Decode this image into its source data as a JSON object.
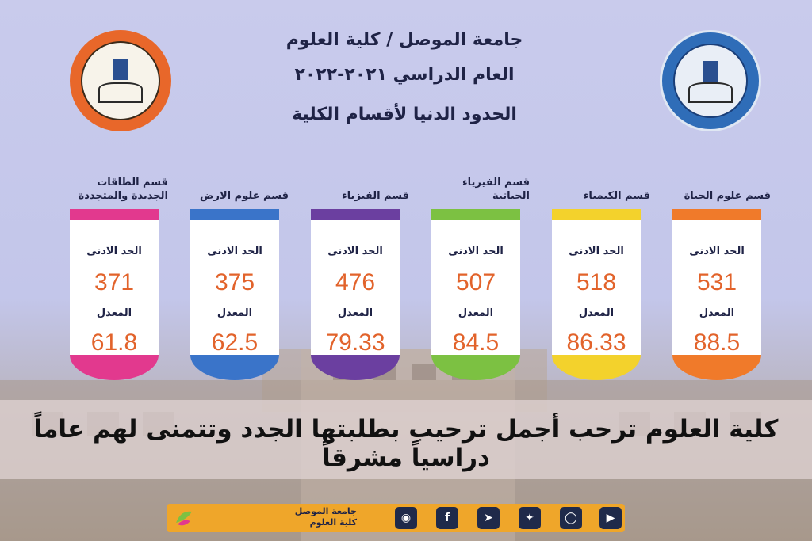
{
  "header": {
    "line1": "جامعة الموصل / كلية العلوم",
    "line2": "العام الدراسي ٢٠٢١-٢٠٢٢",
    "line3": "الحدود الدنيا لأقسام الكلية"
  },
  "card_labels": {
    "min": "الحد الادنى",
    "avg": "المعدل"
  },
  "departments": [
    {
      "name": "قسم علوم الحياة",
      "min": "531",
      "avg": "88.5",
      "color": "#f07a2a"
    },
    {
      "name": "قسم الكيمياء",
      "min": "518",
      "avg": "86.33",
      "color": "#f3d22c"
    },
    {
      "name": "قسم الفيزياء الحياتية",
      "min": "507",
      "avg": "84.5",
      "color": "#7cc142"
    },
    {
      "name": "قسم الفيزياء",
      "min": "476",
      "avg": "79.33",
      "color": "#6b3fa0"
    },
    {
      "name": "قسم علوم الارض",
      "min": "375",
      "avg": "62.5",
      "color": "#3a74c9"
    },
    {
      "name": "قسم الطاقات الجديدة والمتجددة",
      "min": "371",
      "avg": "61.8",
      "color": "#e2398e"
    }
  ],
  "slogan": "كلية العلوم ترحب أجمل ترحيب بطلبتها الجدد وتتمنى لهم عاماً دراسياً مشرقاً",
  "footer": {
    "university": "جامعة الموصل",
    "college": "كلية العلوم",
    "social_icons": [
      "web-icon",
      "facebook-icon",
      "telegram-icon",
      "twitter-icon",
      "instagram-icon",
      "youtube-icon"
    ]
  },
  "colors": {
    "accent": "#e2632b",
    "footer": "#efa62a",
    "text": "#1f2346"
  }
}
